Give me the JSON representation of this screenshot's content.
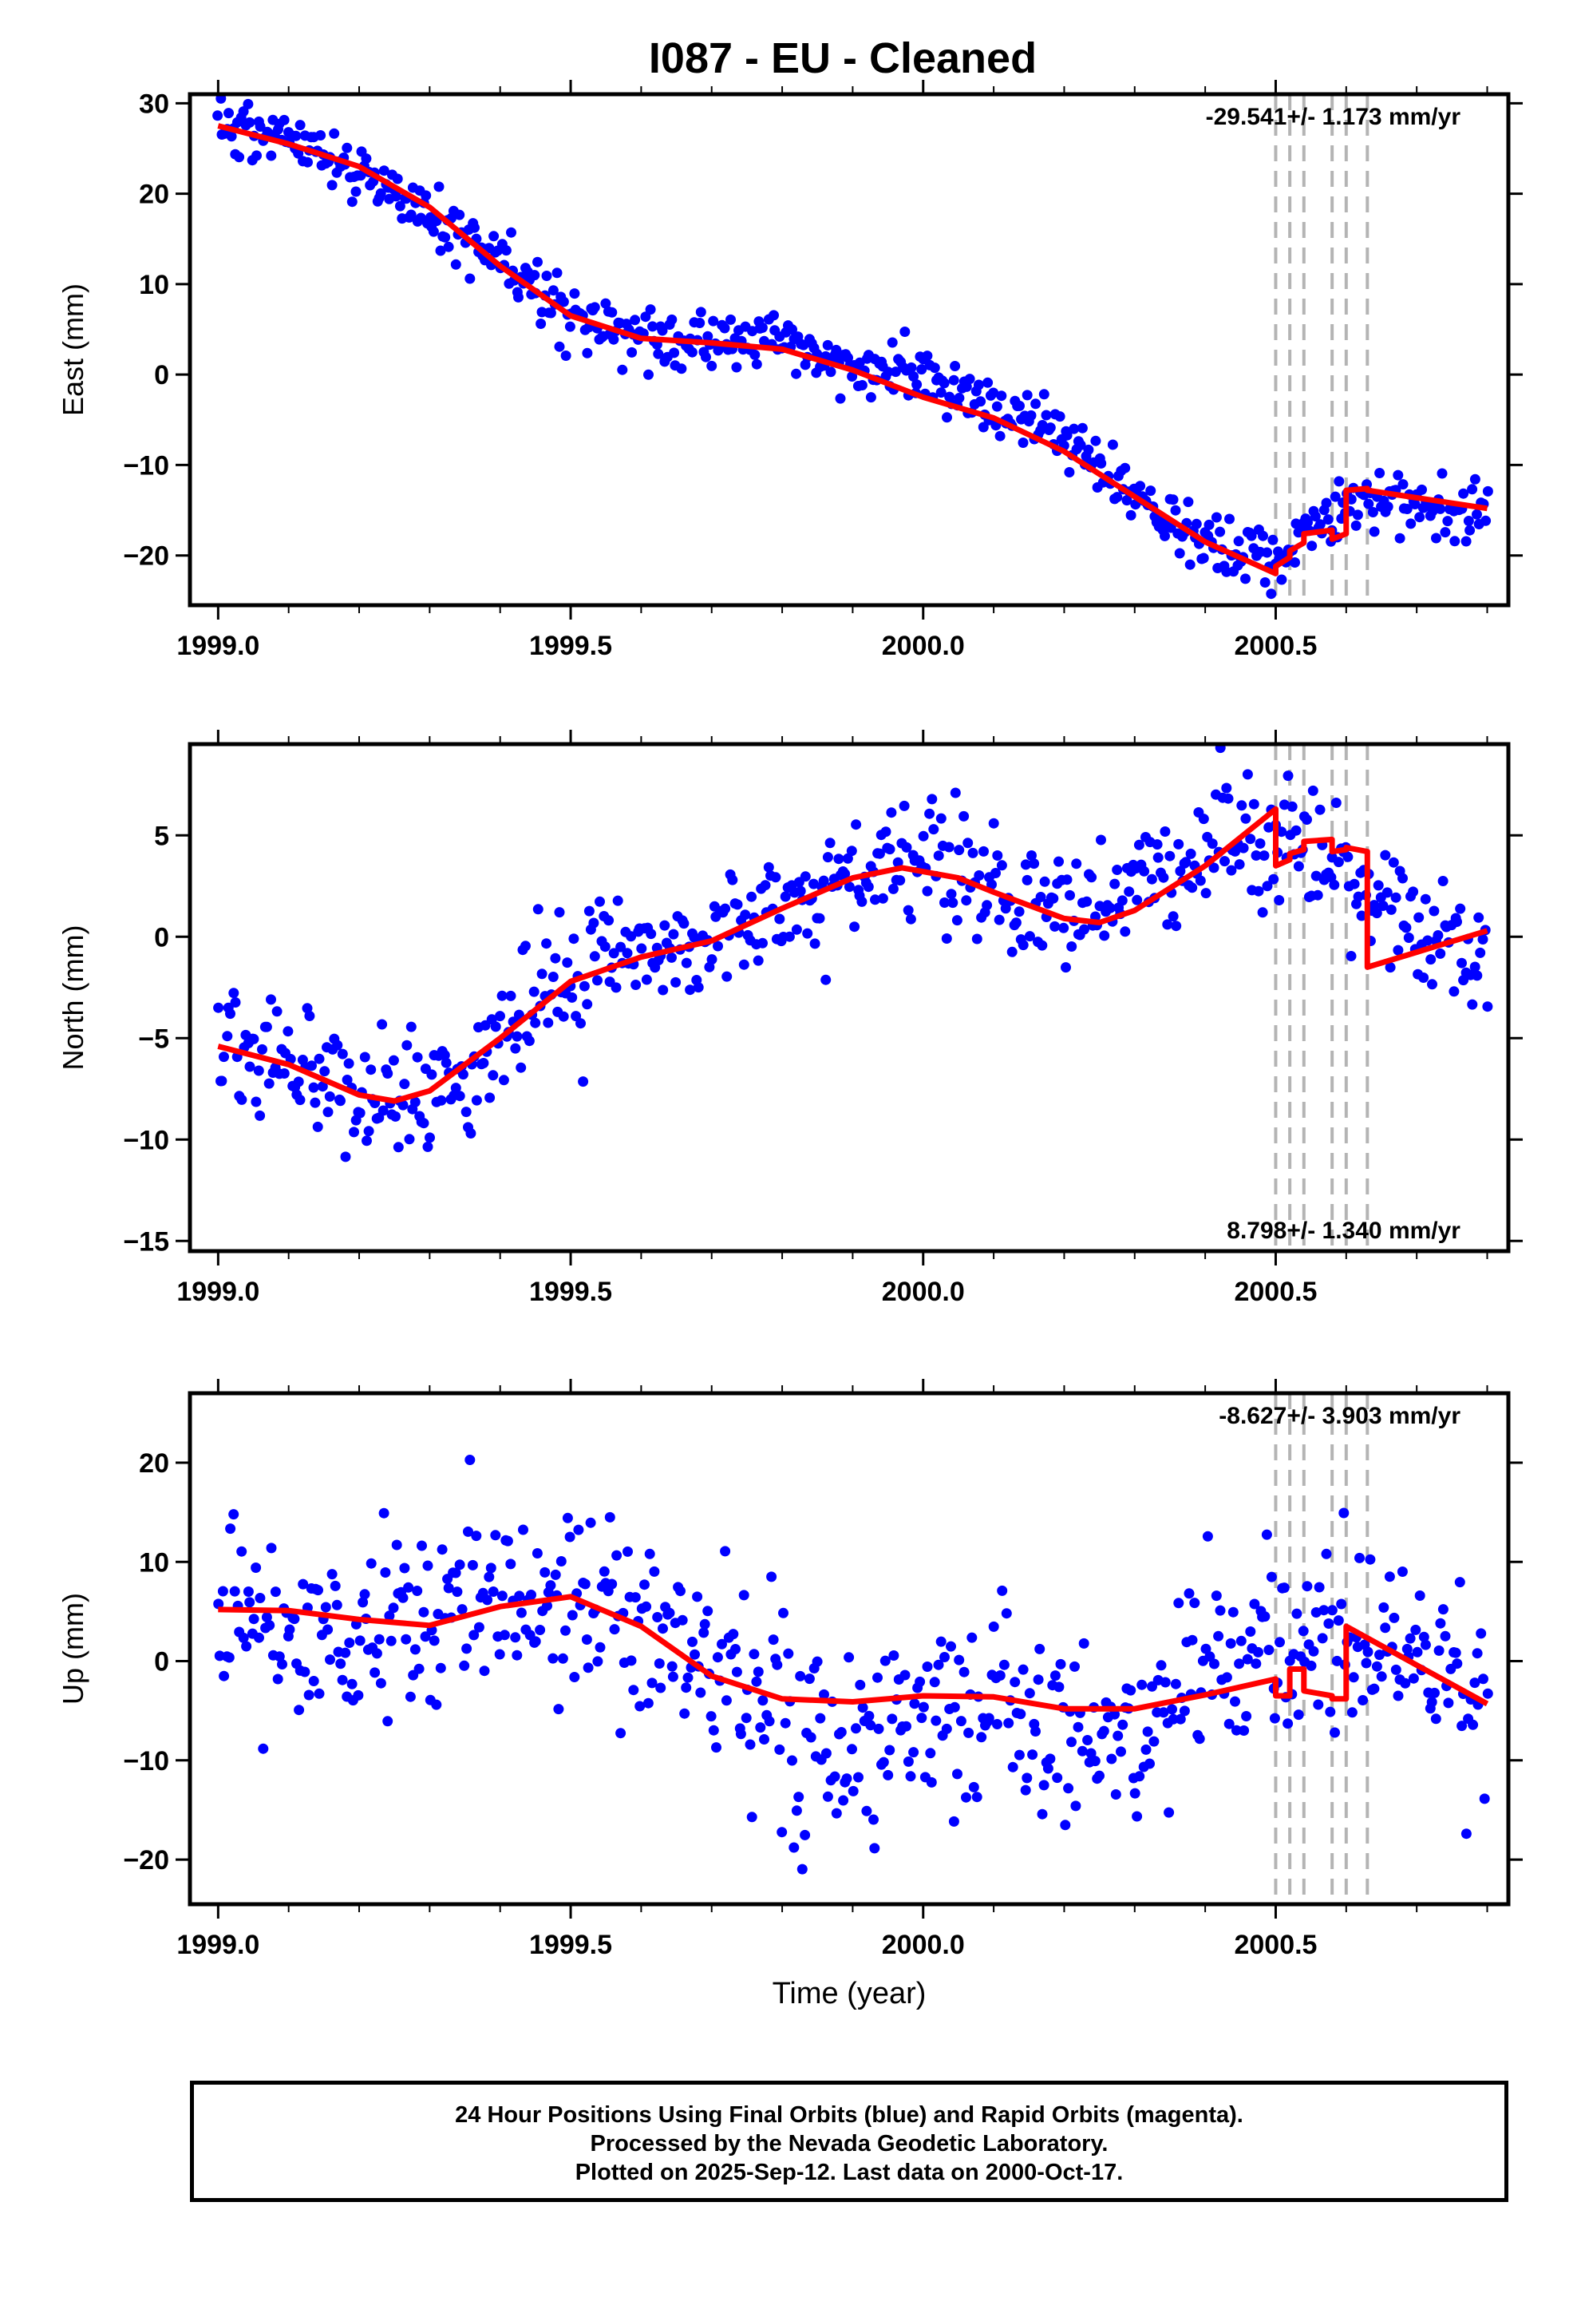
{
  "title": "I087  - EU - Cleaned",
  "colors": {
    "data": "#0000ff",
    "model": "#ff0000",
    "breaks": "#b4b4b4"
  },
  "footer": {
    "line1": "24 Hour Positions Using Final Orbits (blue) and Rapid Orbits (magenta).",
    "line2": "Processed by the Nevada Geodetic Laboratory.",
    "line3": "Plotted on 2025-Sep-12. Last data on 2000-Oct-17."
  },
  "chart_data": [
    {
      "type": "scatter",
      "ylabel": "East (mm)",
      "xlabel": "",
      "rate_label": "-29.541+/- 1.173 mm/yr",
      "rate_position": "top-right",
      "xlim": [
        1998.96,
        2000.83
      ],
      "ylim": [
        -25.5,
        31
      ],
      "xticks": [
        "1999.0",
        "1999.5",
        "2000.0",
        "2000.5"
      ],
      "yticks": [
        "30",
        "20",
        "10",
        "0",
        "−10",
        "−20"
      ],
      "break_lines_x": [
        2000.5,
        2000.52,
        2000.54,
        2000.58,
        2000.6,
        2000.63
      ],
      "model": {
        "x": [
          1999.0,
          1999.1,
          1999.2,
          1999.3,
          1999.4,
          1999.5,
          1999.6,
          1999.7,
          1999.8,
          1999.9,
          2000.0,
          2000.1,
          2000.2,
          2000.3,
          2000.4,
          2000.5,
          2000.5,
          2000.52,
          2000.52,
          2000.54,
          2000.54,
          2000.58,
          2000.58,
          2000.6,
          2000.6,
          2000.63,
          2000.63,
          2000.8
        ],
        "y": [
          27.5,
          25.5,
          23.0,
          18.5,
          12.0,
          6.5,
          4.0,
          3.5,
          2.8,
          0.5,
          -2.5,
          -4.8,
          -8.5,
          -13.5,
          -18.5,
          -22.0,
          -21.2,
          -20.2,
          -19.5,
          -18.6,
          -17.6,
          -17.2,
          -18.2,
          -17.6,
          -12.8,
          -12.6,
          -12.8,
          -14.8
        ]
      },
      "scatter": {
        "anchors_x": [
          1999.0,
          1999.1,
          1999.2,
          1999.3,
          1999.4,
          1999.5,
          1999.6,
          1999.7,
          1999.8,
          1999.9,
          2000.0,
          2000.1,
          2000.2,
          2000.3,
          2000.4,
          2000.5,
          2000.6,
          2000.8
        ],
        "anchors_y": [
          27.5,
          26.0,
          22.5,
          18.0,
          12.0,
          6.5,
          4.0,
          3.5,
          4.0,
          0.5,
          0.0,
          -4.0,
          -6.5,
          -13.5,
          -19.0,
          -20.5,
          -14.0,
          -15.0
        ],
        "noise": 2.2
      }
    },
    {
      "type": "scatter",
      "ylabel": "North (mm)",
      "xlabel": "",
      "rate_label": "8.798+/- 1.340 mm/yr",
      "rate_position": "bottom-right",
      "xlim": [
        1998.96,
        2000.83
      ],
      "ylim": [
        -15.5,
        9.5
      ],
      "xticks": [
        "1999.0",
        "1999.5",
        "2000.0",
        "2000.5"
      ],
      "yticks": [
        "5",
        "0",
        "−5",
        "−10",
        "−15"
      ],
      "break_lines_x": [
        2000.5,
        2000.52,
        2000.54,
        2000.58,
        2000.6,
        2000.63
      ],
      "model": {
        "x": [
          1999.0,
          1999.1,
          1999.2,
          1999.25,
          1999.3,
          1999.4,
          1999.5,
          1999.6,
          1999.7,
          1999.8,
          1999.9,
          1999.97,
          2000.05,
          2000.1,
          2000.2,
          2000.25,
          2000.3,
          2000.4,
          2000.5,
          2000.5,
          2000.52,
          2000.52,
          2000.54,
          2000.54,
          2000.58,
          2000.58,
          2000.6,
          2000.6,
          2000.63,
          2000.63,
          2000.8
        ],
        "y": [
          -5.4,
          -6.3,
          -7.8,
          -8.1,
          -7.6,
          -5.0,
          -2.2,
          -1.0,
          -0.2,
          1.4,
          2.9,
          3.4,
          2.9,
          2.2,
          0.9,
          0.7,
          1.3,
          3.5,
          6.3,
          3.5,
          3.8,
          4.1,
          4.3,
          4.7,
          4.8,
          4.2,
          4.3,
          4.4,
          4.2,
          -1.5,
          0.3
        ]
      },
      "scatter": {
        "anchors_x": [
          1999.0,
          1999.1,
          1999.2,
          1999.3,
          1999.4,
          1999.5,
          1999.6,
          1999.7,
          1999.8,
          1999.9,
          2000.0,
          2000.1,
          2000.2,
          2000.3,
          2000.4,
          2000.5,
          2000.6,
          2000.8
        ],
        "anchors_y": [
          -5.0,
          -6.0,
          -7.5,
          -8.0,
          -5.0,
          -2.0,
          -0.5,
          0.0,
          1.5,
          3.0,
          4.0,
          2.0,
          1.0,
          2.0,
          4.5,
          5.0,
          3.0,
          -1.5
        ],
        "noise": 2.0
      }
    },
    {
      "type": "scatter",
      "ylabel": "Up (mm)",
      "xlabel": "Time (year)",
      "rate_label": "-8.627+/- 3.903 mm/yr",
      "rate_position": "top-right",
      "xlim": [
        1998.96,
        2000.83
      ],
      "ylim": [
        -24.5,
        27
      ],
      "xticks": [
        "1999.0",
        "1999.5",
        "2000.0",
        "2000.5"
      ],
      "yticks": [
        "20",
        "10",
        "0",
        "−10",
        "−20"
      ],
      "break_lines_x": [
        2000.5,
        2000.52,
        2000.54,
        2000.58,
        2000.6,
        2000.63
      ],
      "model": {
        "x": [
          1999.0,
          1999.1,
          1999.2,
          1999.3,
          1999.4,
          1999.5,
          1999.6,
          1999.7,
          1999.8,
          1999.9,
          2000.0,
          2000.1,
          2000.2,
          2000.3,
          2000.4,
          2000.5,
          2000.5,
          2000.52,
          2000.52,
          2000.54,
          2000.54,
          2000.58,
          2000.58,
          2000.6,
          2000.6,
          2000.8
        ],
        "y": [
          5.2,
          5.1,
          4.2,
          3.6,
          5.5,
          6.5,
          3.5,
          -1.5,
          -3.8,
          -4.1,
          -3.5,
          -3.6,
          -4.8,
          -4.8,
          -3.4,
          -1.8,
          -3.5,
          -3.5,
          -0.8,
          -0.8,
          -3.0,
          -3.5,
          -3.8,
          -3.8,
          3.5,
          -4.3
        ]
      },
      "scatter": {
        "anchors_x": [
          1999.0,
          1999.1,
          1999.2,
          1999.3,
          1999.4,
          1999.5,
          1999.6,
          1999.7,
          1999.8,
          1999.9,
          2000.0,
          2000.1,
          2000.2,
          2000.3,
          2000.4,
          2000.5,
          2000.6,
          2000.8
        ],
        "anchors_y": [
          3.0,
          5.0,
          3.5,
          4.0,
          7.0,
          5.5,
          3.0,
          -1.0,
          -6.0,
          -8.0,
          -5.0,
          -4.0,
          -7.0,
          -7.0,
          -3.0,
          0.0,
          2.0,
          -4.0
        ],
        "noise": 6.5
      }
    }
  ]
}
